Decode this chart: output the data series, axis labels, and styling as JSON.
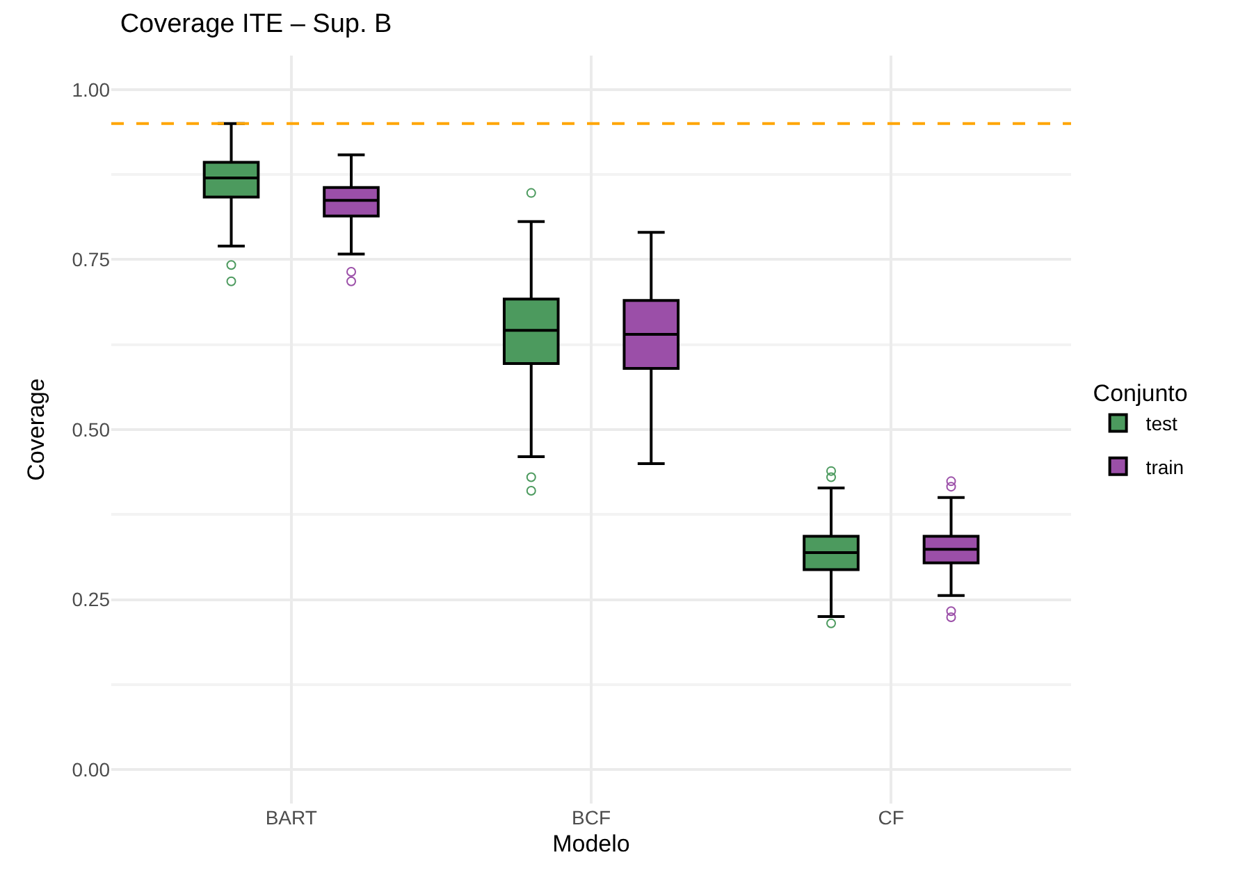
{
  "chart_data": {
    "type": "box",
    "title": "Coverage ITE – Sup. B",
    "xlabel": "Modelo",
    "ylabel": "Coverage",
    "legend_title": "Conjunto",
    "categories": [
      "BART",
      "BCF",
      "CF"
    ],
    "series": [
      {
        "name": "test",
        "color": "#4c9a5e",
        "boxes": [
          {
            "low": 0.77,
            "q1": 0.842,
            "median": 0.87,
            "q3": 0.893,
            "high": 0.95,
            "outliers": [
              0.742,
              0.718
            ]
          },
          {
            "low": 0.46,
            "q1": 0.597,
            "median": 0.646,
            "q3": 0.692,
            "high": 0.806,
            "outliers": [
              0.848,
              0.43,
              0.41
            ]
          },
          {
            "low": 0.225,
            "q1": 0.294,
            "median": 0.319,
            "q3": 0.343,
            "high": 0.414,
            "outliers": [
              0.439,
              0.43,
              0.215
            ]
          }
        ]
      },
      {
        "name": "train",
        "color": "#9b4fa8",
        "boxes": [
          {
            "low": 0.758,
            "q1": 0.814,
            "median": 0.837,
            "q3": 0.856,
            "high": 0.904,
            "outliers": [
              0.732,
              0.718
            ]
          },
          {
            "low": 0.45,
            "q1": 0.59,
            "median": 0.64,
            "q3": 0.69,
            "high": 0.79
          },
          {
            "low": 0.256,
            "q1": 0.304,
            "median": 0.324,
            "q3": 0.343,
            "high": 0.4,
            "outliers": [
              0.424,
              0.416,
              0.233,
              0.224
            ]
          }
        ]
      }
    ],
    "ylim": [
      -0.05,
      1.05
    ],
    "yticks": [
      {
        "value": 0,
        "label": "0.00"
      },
      {
        "value": 0.25,
        "label": "0.25"
      },
      {
        "value": 0.5,
        "label": "0.50"
      },
      {
        "value": 0.75,
        "label": "0.75"
      },
      {
        "value": 1,
        "label": "1.00"
      }
    ],
    "ref_lines": [
      {
        "axis": "y",
        "value": 0.95,
        "label": null,
        "color": "#ffa500",
        "line_style": "dashed"
      }
    ],
    "grid": true,
    "legend": "right",
    "marker": "circle"
  }
}
